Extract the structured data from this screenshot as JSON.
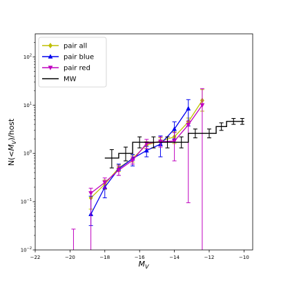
{
  "chart_data": {
    "type": "line",
    "xlabel": "M_V",
    "ylabel": "N(<M_V)/host",
    "xlim": [
      -22,
      -9.5
    ],
    "ylim": [
      0.01,
      300
    ],
    "yscale": "log",
    "x_ticks": [
      {
        "value": -22,
        "label": "−22"
      },
      {
        "value": -20,
        "label": "−20"
      },
      {
        "value": -18,
        "label": "−18"
      },
      {
        "value": -16,
        "label": "−16"
      },
      {
        "value": -14,
        "label": "−14"
      },
      {
        "value": -12,
        "label": "−12"
      },
      {
        "value": -10,
        "label": "−10"
      }
    ],
    "y_ticks": [
      {
        "value": 0.01,
        "base": "10",
        "exp": "−2"
      },
      {
        "value": 0.1,
        "base": "10",
        "exp": "−1"
      },
      {
        "value": 1,
        "base": "10",
        "exp": "0"
      },
      {
        "value": 10,
        "base": "10",
        "exp": "1"
      },
      {
        "value": 100,
        "base": "10",
        "exp": "2"
      }
    ],
    "legend_position": "top-left",
    "series": [
      {
        "name": "pair all",
        "color": "#bfbf00",
        "marker": "diamond",
        "style": "line",
        "points": [
          {
            "x": -18.8,
            "y": 0.12,
            "lo": 0.07,
            "hi": 0.16
          },
          {
            "x": -18.0,
            "y": 0.23,
            "lo": 0.18,
            "hi": 0.28
          },
          {
            "x": -17.2,
            "y": 0.5,
            "lo": 0.42,
            "hi": 0.58
          },
          {
            "x": -16.4,
            "y": 0.78,
            "lo": 0.66,
            "hi": 0.92
          },
          {
            "x": -15.6,
            "y": 1.5,
            "lo": 1.25,
            "hi": 1.75
          },
          {
            "x": -14.8,
            "y": 1.8,
            "lo": 1.5,
            "hi": 2.1
          },
          {
            "x": -14.0,
            "y": 2.2,
            "lo": 1.6,
            "hi": 2.8
          },
          {
            "x": -13.2,
            "y": 4.5,
            "lo": 3.7,
            "hi": 5.4
          },
          {
            "x": -12.4,
            "y": 12.5,
            "lo": 7.5,
            "hi": 21
          }
        ]
      },
      {
        "name": "pair blue",
        "color": "#0000ee",
        "marker": "triangle-up",
        "style": "line",
        "points": [
          {
            "x": -18.8,
            "y": 0.055,
            "lo": 0.032,
            "hi": 0.13
          },
          {
            "x": -18.0,
            "y": 0.2,
            "lo": 0.12,
            "hi": 0.27
          },
          {
            "x": -17.2,
            "y": 0.48,
            "lo": 0.35,
            "hi": 0.6
          },
          {
            "x": -16.4,
            "y": 0.78,
            "lo": 0.55,
            "hi": 0.95
          },
          {
            "x": -15.6,
            "y": 1.15,
            "lo": 0.85,
            "hi": 1.4
          },
          {
            "x": -14.8,
            "y": 1.55,
            "lo": 0.85,
            "hi": 2.3
          },
          {
            "x": -14.0,
            "y": 3.2,
            "lo": 2.0,
            "hi": 4.5
          },
          {
            "x": -13.2,
            "y": 8.5,
            "lo": 3.7,
            "hi": 13
          }
        ]
      },
      {
        "name": "pair red",
        "color": "#bf00bf",
        "marker": "triangle-down",
        "style": "line",
        "points": [
          {
            "x": -19.8,
            "y": null,
            "lo": 0.002,
            "hi": 0.027
          },
          {
            "x": -18.8,
            "y": 0.15,
            "lo": 0.002,
            "hi": 0.19
          },
          {
            "x": -18.0,
            "y": 0.25,
            "lo": 0.19,
            "hi": 0.31
          },
          {
            "x": -17.2,
            "y": 0.45,
            "lo": 0.35,
            "hi": 0.55
          },
          {
            "x": -16.4,
            "y": 0.72,
            "lo": 0.6,
            "hi": 0.85
          },
          {
            "x": -15.6,
            "y": 1.6,
            "lo": 1.25,
            "hi": 1.95
          },
          {
            "x": -14.8,
            "y": 1.75,
            "lo": 1.35,
            "hi": 2.2
          },
          {
            "x": -14.0,
            "y": 1.8,
            "lo": 0.7,
            "hi": 2.7
          },
          {
            "x": -13.2,
            "y": 3.9,
            "lo": 0.095,
            "hi": 4.7
          },
          {
            "x": -12.4,
            "y": 10,
            "lo": 0.002,
            "hi": 22
          }
        ]
      },
      {
        "name": "MW",
        "color": "#000000",
        "marker": "none",
        "style": "steps",
        "steps": [
          {
            "x0": -18.0,
            "x1": -17.2,
            "y": 0.8,
            "lo": 0.5,
            "hi": 1.2
          },
          {
            "x0": -17.2,
            "x1": -16.4,
            "y": 1.0,
            "lo": 0.7,
            "hi": 1.35
          },
          {
            "x0": -16.4,
            "x1": -15.6,
            "y": 1.7,
            "lo": 1.3,
            "hi": 2.2
          },
          {
            "x0": -15.6,
            "x1": -14.8,
            "y": 1.7,
            "lo": 1.3,
            "hi": 2.2
          },
          {
            "x0": -14.8,
            "x1": -14.0,
            "y": 1.7,
            "lo": 1.3,
            "hi": 2.2
          },
          {
            "x0": -14.0,
            "x1": -13.2,
            "y": 1.7,
            "lo": 1.3,
            "hi": 2.2
          },
          {
            "x0": -13.2,
            "x1": -12.4,
            "y": 2.6,
            "lo": 2.1,
            "hi": 3.2
          },
          {
            "x0": -12.4,
            "x1": -11.6,
            "y": 2.6,
            "lo": 2.1,
            "hi": 3.2
          },
          {
            "x0": -11.6,
            "x1": -11.0,
            "y": 3.6,
            "lo": 3.0,
            "hi": 4.3
          },
          {
            "x0": -11.0,
            "x1": -10.2,
            "y": 4.6,
            "lo": 4.0,
            "hi": 5.3
          },
          {
            "x0": -10.2,
            "x1": -10.0,
            "y": 4.6,
            "lo": 4.0,
            "hi": 5.3
          }
        ]
      }
    ]
  }
}
